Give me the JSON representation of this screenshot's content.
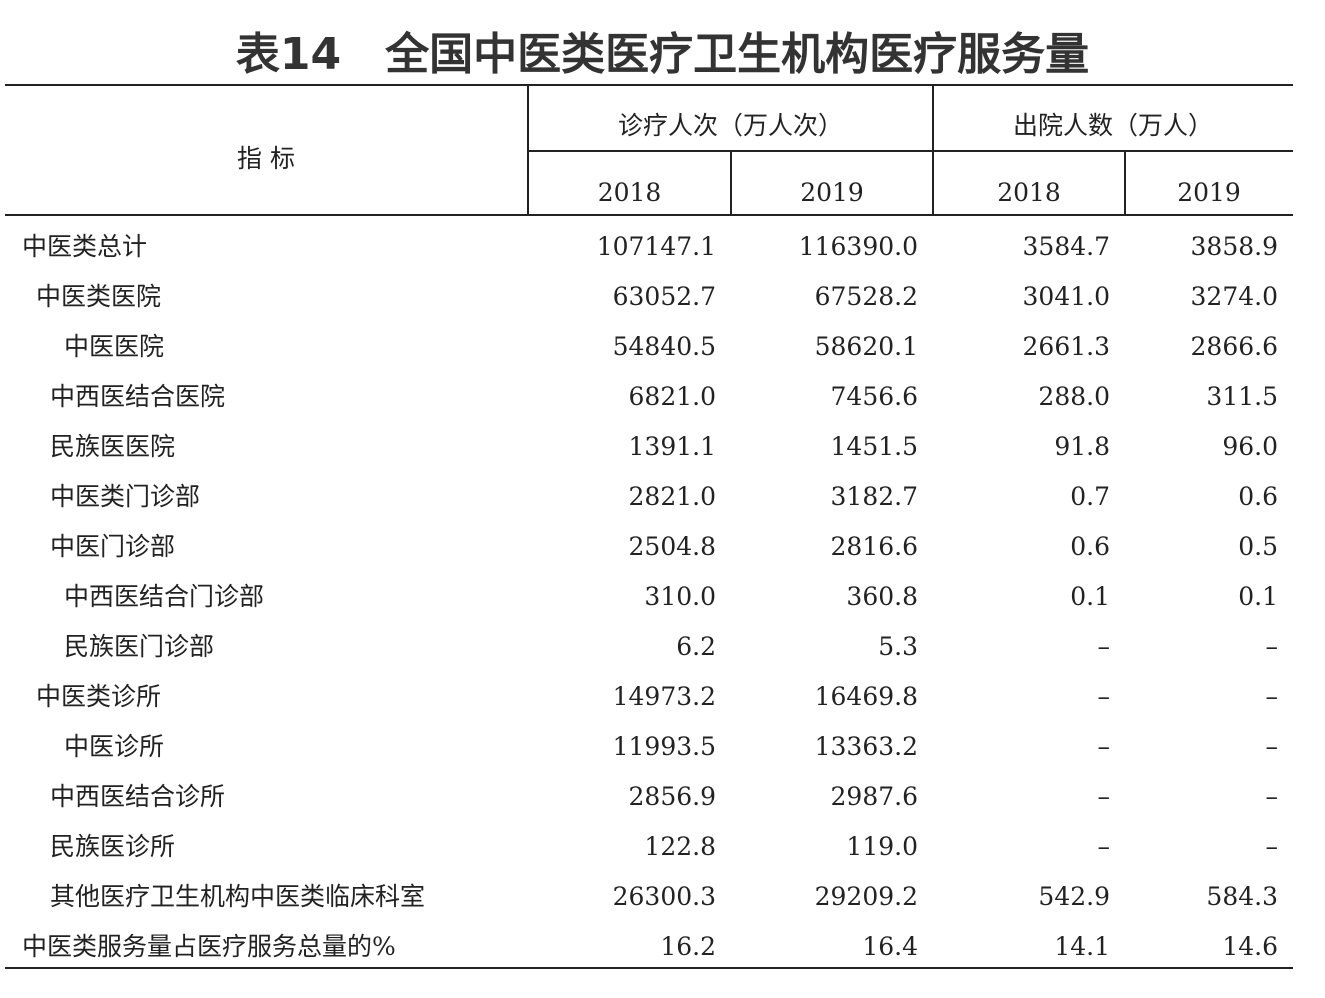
{
  "title": "表14　全国中医类医疗卫生机构医疗服务量",
  "table": {
    "header": {
      "indicator": "指 标",
      "groups": [
        {
          "label": "诊疗人次（万人次）",
          "years": [
            "2018",
            "2019"
          ]
        },
        {
          "label": "出院人数（万人）",
          "years": [
            "2018",
            "2019"
          ]
        }
      ]
    },
    "rows": [
      [
        "中医类总计",
        "107147.1",
        "116390.0",
        "3584.7",
        "3858.9"
      ],
      [
        "中医类医院",
        "63052.7",
        "67528.2",
        "3041.0",
        "3274.0"
      ],
      [
        "中医医院",
        "54840.5",
        "58620.1",
        "2661.3",
        "2866.6"
      ],
      [
        "中西医结合医院",
        "6821.0",
        "7456.6",
        "288.0",
        "311.5"
      ],
      [
        "民族医医院",
        "1391.1",
        "1451.5",
        "91.8",
        "96.0"
      ],
      [
        "中医类门诊部",
        "2821.0",
        "3182.7",
        "0.7",
        "0.6"
      ],
      [
        "中医门诊部",
        "2504.8",
        "2816.6",
        "0.6",
        "0.5"
      ],
      [
        "中西医结合门诊部",
        "310.0",
        "360.8",
        "0.1",
        "0.1"
      ],
      [
        "民族医门诊部",
        "6.2",
        "5.3",
        "–",
        "–"
      ],
      [
        "中医类诊所",
        "14973.2",
        "16469.8",
        "–",
        "–"
      ],
      [
        "中医诊所",
        "11993.5",
        "13363.2",
        "–",
        "–"
      ],
      [
        "中西医结合诊所",
        "2856.9",
        "2987.6",
        "–",
        "–"
      ],
      [
        "民族医诊所",
        "122.8",
        "119.0",
        "–",
        "–"
      ],
      [
        "其他医疗卫生机构中医类临床科室",
        "26300.3",
        "29209.2",
        "542.9",
        "584.3"
      ],
      [
        "中医类服务量占医疗服务总量的%",
        "16.2",
        "16.4",
        "14.1",
        "14.6"
      ]
    ]
  }
}
